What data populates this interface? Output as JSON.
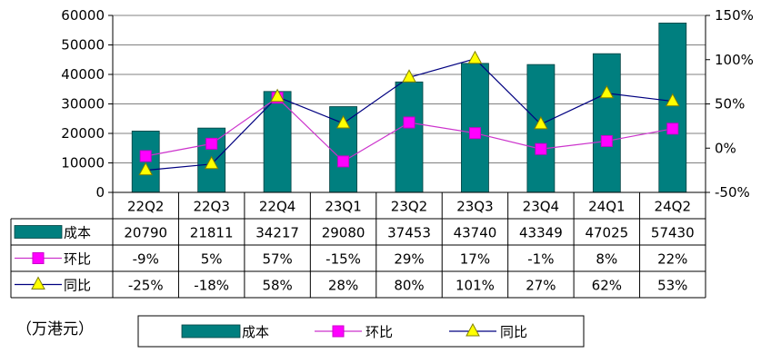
{
  "chart_data": {
    "type": "bar",
    "categories": [
      "22Q2",
      "22Q3",
      "22Q4",
      "23Q1",
      "23Q2",
      "23Q3",
      "23Q4",
      "24Q1",
      "24Q2"
    ],
    "series": [
      {
        "name": "成本",
        "kind": "bar",
        "axis": "left",
        "values": [
          20790,
          21811,
          34217,
          29080,
          37453,
          43740,
          43349,
          47025,
          57430
        ],
        "labels": [
          "20790",
          "21811",
          "34217",
          "29080",
          "37453",
          "43740",
          "43349",
          "47025",
          "57430"
        ],
        "color": "#007f7f"
      },
      {
        "name": "环比",
        "kind": "line",
        "axis": "right",
        "marker": "square",
        "values": [
          -9,
          5,
          57,
          -15,
          29,
          17,
          -1,
          8,
          22
        ],
        "labels": [
          "-9%",
          "5%",
          "57%",
          "-15%",
          "29%",
          "17%",
          "-1%",
          "8%",
          "22%"
        ],
        "color": "#ff00ff",
        "line_color": "#cc33cc"
      },
      {
        "name": "同比",
        "kind": "line",
        "axis": "right",
        "marker": "triangle",
        "values": [
          -25,
          -18,
          58,
          28,
          80,
          101,
          27,
          62,
          53
        ],
        "labels": [
          "-25%",
          "-18%",
          "58%",
          "28%",
          "80%",
          "101%",
          "27%",
          "62%",
          "53%"
        ],
        "color": "#ffff00",
        "line_color": "#000080"
      }
    ],
    "y_left": {
      "min": 0,
      "max": 60000,
      "ticks": [
        "0",
        "10000",
        "20000",
        "30000",
        "40000",
        "50000",
        "60000"
      ]
    },
    "y_right": {
      "min": -50,
      "max": 150,
      "ticks": [
        "-50%",
        "0%",
        "50%",
        "100%",
        "150%"
      ]
    },
    "grid": true,
    "unit_label": "（万港元）",
    "legend_position": "bottom"
  }
}
